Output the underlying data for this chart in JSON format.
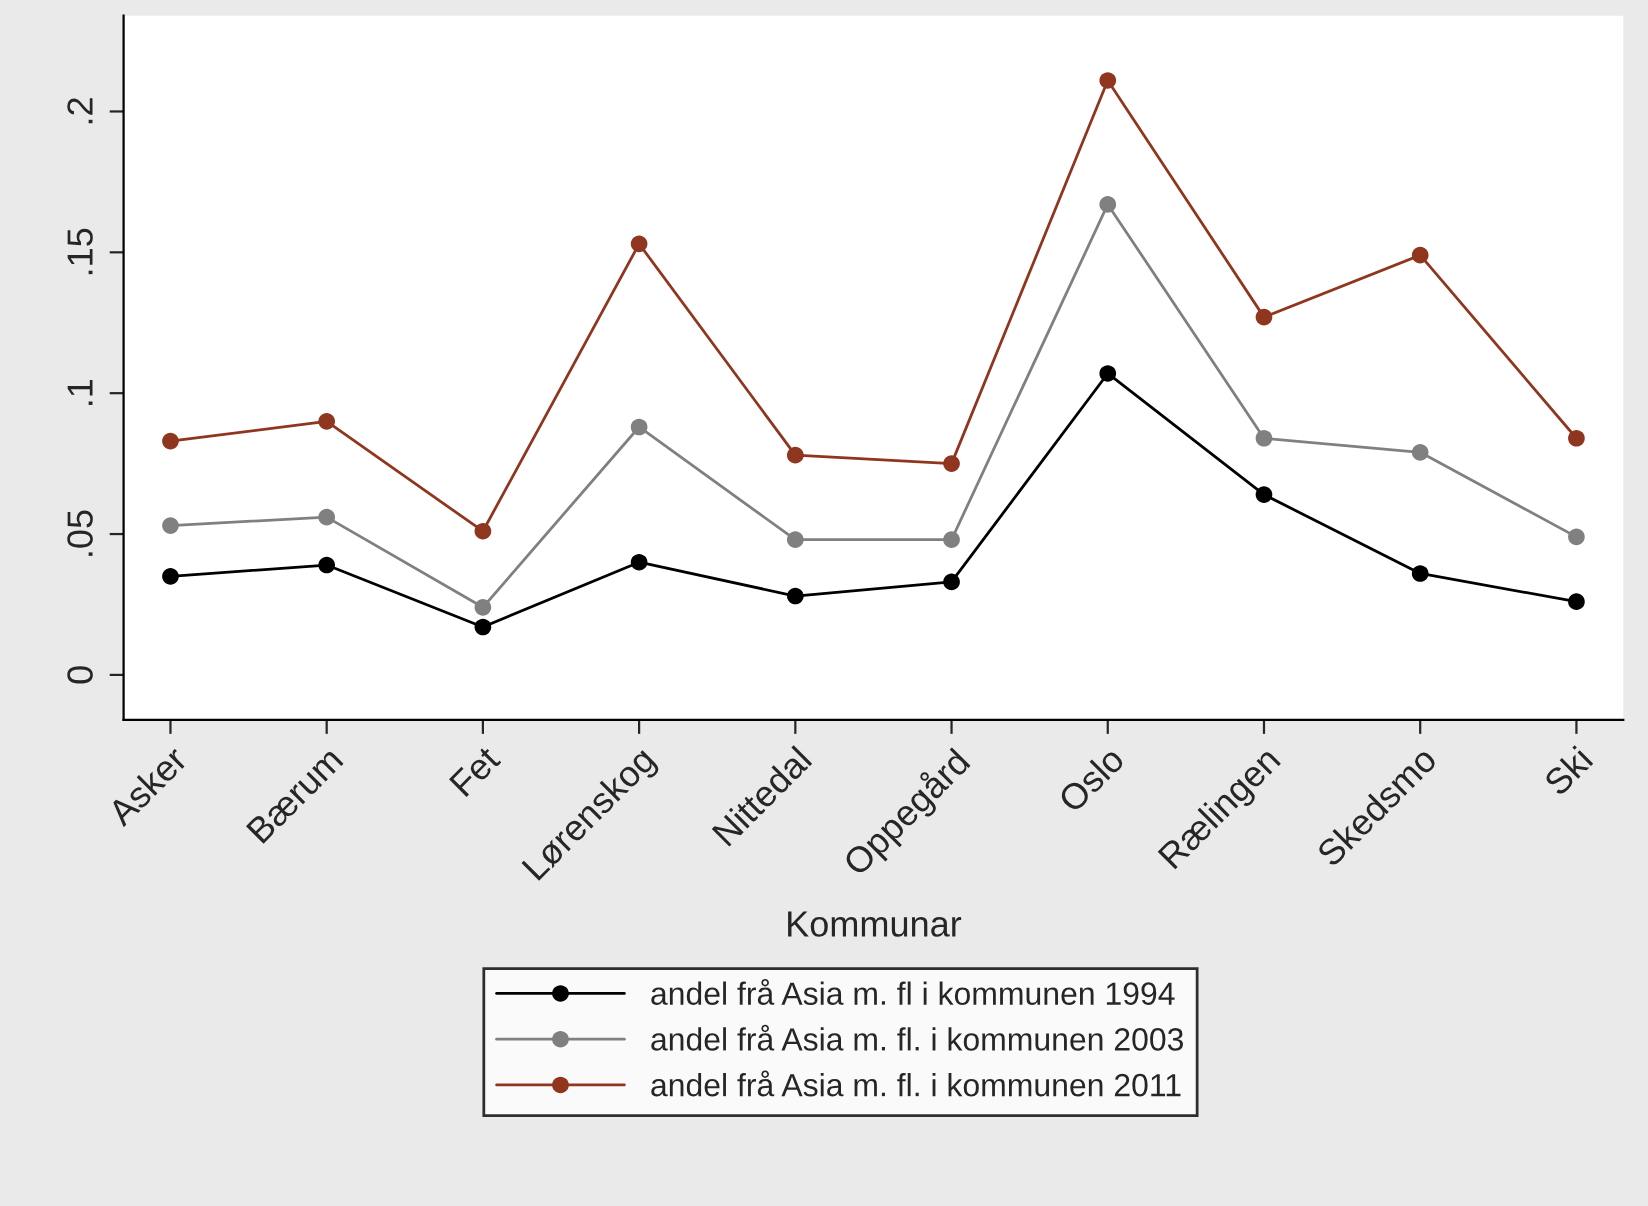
{
  "chart_data": {
    "type": "line",
    "xlabel": "Kommunar",
    "categories": [
      "Asker",
      "Bærum",
      "Fet",
      "Lørenskog",
      "Nittedal",
      "Oppegård",
      "Oslo",
      "Rælingen",
      "Skedsmo",
      "Ski"
    ],
    "series": [
      {
        "name": "andel frå Asia m. fl i kommunen 1994",
        "color": "#000000",
        "values": [
          0.035,
          0.039,
          0.017,
          0.04,
          0.028,
          0.033,
          0.107,
          0.064,
          0.036,
          0.026
        ]
      },
      {
        "name": "andel frå Asia m. fl. i kommunen 2003",
        "color": "#808080",
        "values": [
          0.053,
          0.056,
          0.024,
          0.088,
          0.048,
          0.048,
          0.167,
          0.084,
          0.079,
          0.049
        ]
      },
      {
        "name": "andel frå Asia m. fl. i kommunen 2011",
        "color": "#90351e",
        "values": [
          0.083,
          0.09,
          0.051,
          0.153,
          0.078,
          0.075,
          0.211,
          0.127,
          0.149,
          0.084
        ]
      }
    ],
    "ylim": [
      -0.016,
      0.234
    ],
    "yticks": [
      {
        "value": 0,
        "label": "0"
      },
      {
        "value": 0.05,
        "label": ".05"
      },
      {
        "value": 0.1,
        "label": ".1"
      },
      {
        "value": 0.15,
        "label": ".15"
      },
      {
        "value": 0.2,
        "label": ".2"
      }
    ],
    "grid": false,
    "legend": "bottom",
    "marker": "circle",
    "line_style": "solid"
  }
}
